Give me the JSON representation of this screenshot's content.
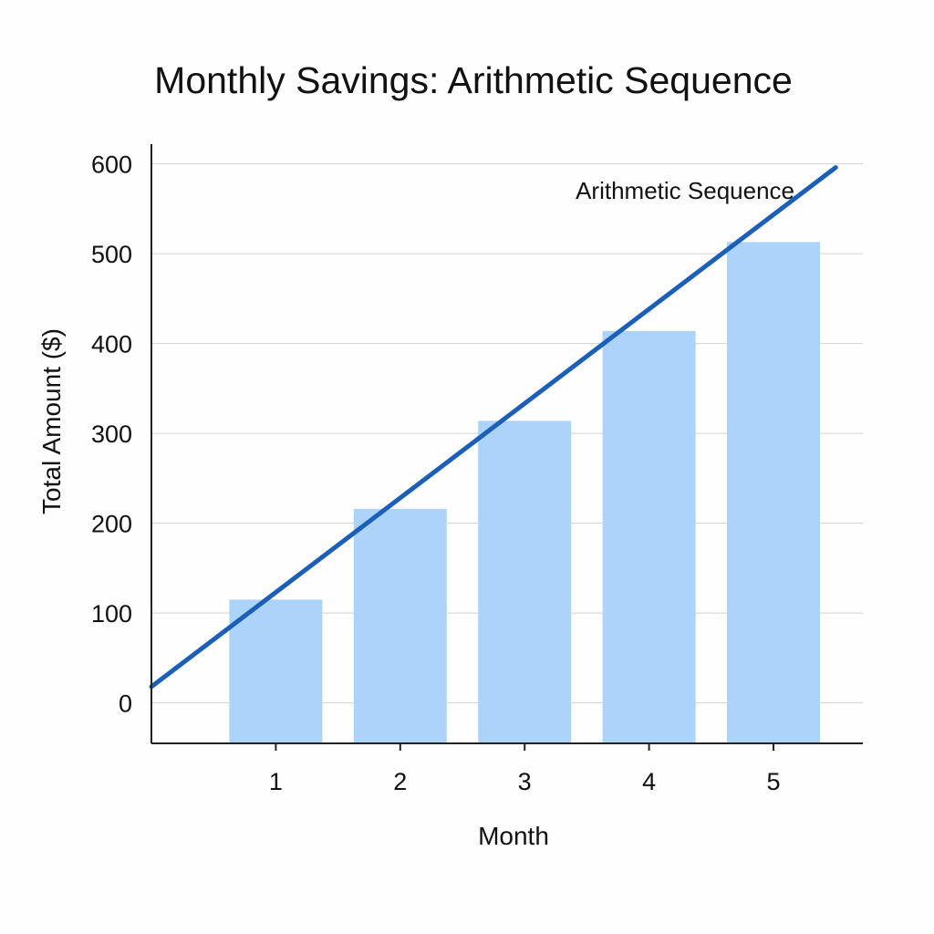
{
  "chart_data": {
    "type": "bar",
    "title": "Monthly Savings: Arithmetic Sequence",
    "xlabel": "Month",
    "ylabel": "Total Amount ($)",
    "categories": [
      "1",
      "2",
      "3",
      "4",
      "5"
    ],
    "y_ticks": [
      "0",
      "100",
      "200",
      "300",
      "400",
      "500",
      "600"
    ],
    "ylim": [
      -45,
      622
    ],
    "grid": true,
    "series": [
      {
        "type": "bar",
        "values": [
          115,
          216,
          314,
          414,
          513
        ],
        "color": "#acd4fb"
      },
      {
        "name": "Arithmetic Sequence",
        "type": "line",
        "x": [
          0,
          5.5
        ],
        "values": [
          18,
          596
        ],
        "color": "#1b5fb8"
      }
    ]
  }
}
